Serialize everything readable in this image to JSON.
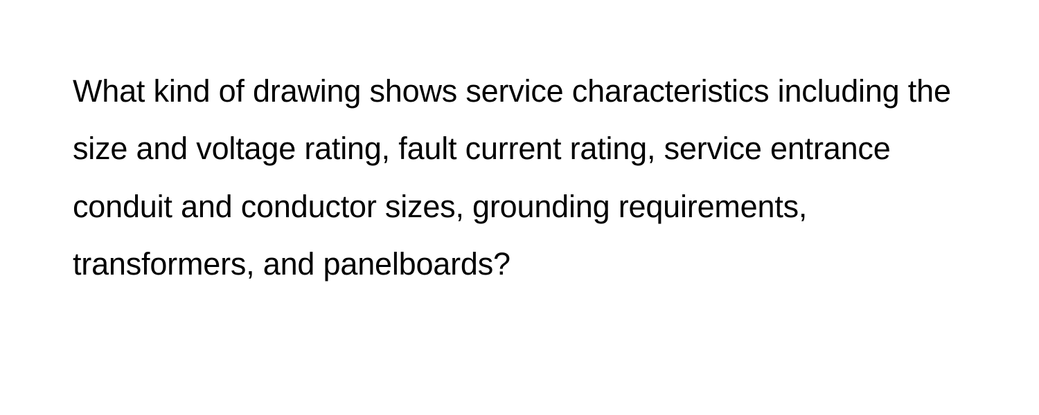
{
  "question": {
    "text": "What kind of drawing shows service characteristics including the size and voltage rating, fault current rating, service entrance conduit and conductor sizes, grounding requirements, transformers, and panelboards?",
    "font_size": 45,
    "line_height": 1.85,
    "color": "#000000",
    "background_color": "#ffffff",
    "font_weight": 400
  }
}
